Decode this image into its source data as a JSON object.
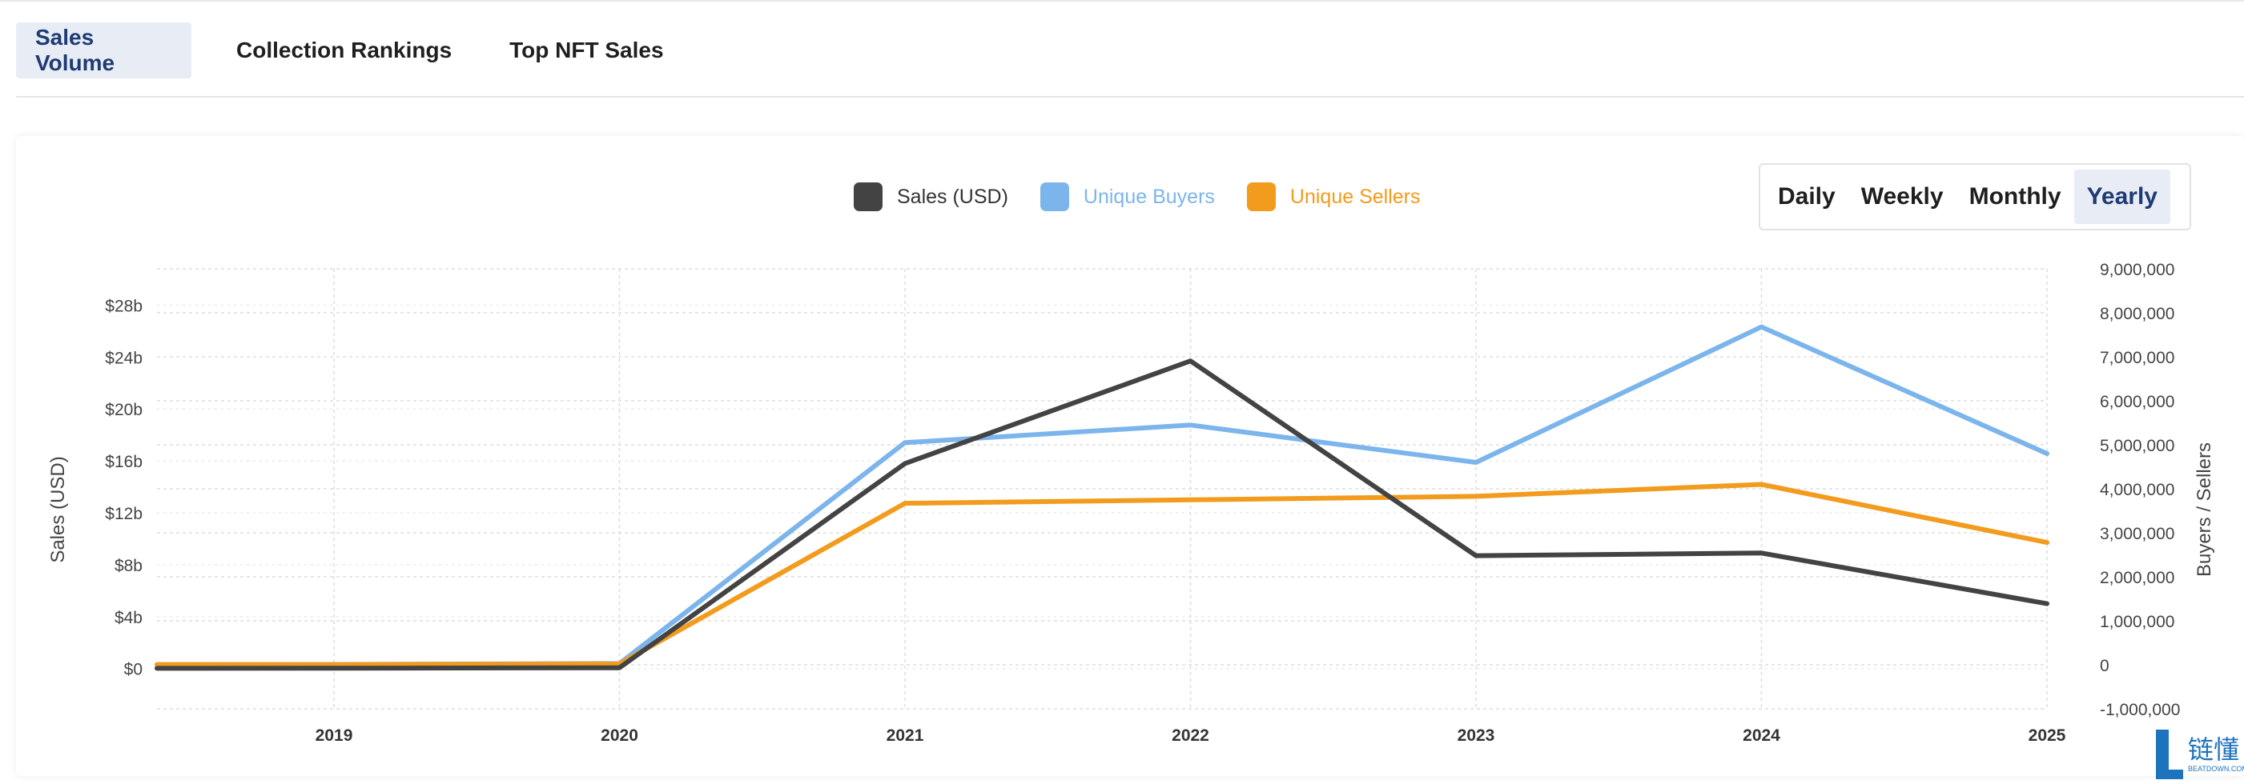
{
  "tabs": [
    {
      "label": "Sales Volume",
      "active": true
    },
    {
      "label": "Collection Rankings",
      "active": false
    },
    {
      "label": "Top NFT Sales",
      "active": false
    }
  ],
  "periods": [
    {
      "label": "Daily",
      "active": false
    },
    {
      "label": "Weekly",
      "active": false
    },
    {
      "label": "Monthly",
      "active": false
    },
    {
      "label": "Yearly",
      "active": true
    }
  ],
  "watermark": {
    "text": "链懂",
    "subtext": "BEATDOWN.COM"
  },
  "chart_data": {
    "type": "line",
    "x": [
      "2019",
      "2020",
      "2021",
      "2022",
      "2023",
      "2024",
      "2025"
    ],
    "x_start": 2018.38,
    "ylabel": "Sales (USD)",
    "y2label": "Buyers / Sellers",
    "y_ticks": [
      "$0",
      "$4b",
      "$8b",
      "$12b",
      "$16b",
      "$20b",
      "$24b",
      "$28b"
    ],
    "y_tick_values": [
      0,
      4,
      8,
      12,
      16,
      20,
      24,
      28
    ],
    "ylim": [
      -3.1,
      30.8
    ],
    "y2_ticks": [
      "-1,000,000",
      "0",
      "1,000,000",
      "2,000,000",
      "3,000,000",
      "4,000,000",
      "5,000,000",
      "6,000,000",
      "7,000,000",
      "8,000,000",
      "9,000,000"
    ],
    "y2_tick_values": [
      -1000000,
      0,
      1000000,
      2000000,
      3000000,
      4000000,
      5000000,
      6000000,
      7000000,
      8000000,
      9000000
    ],
    "y2lim": [
      -1000000,
      9000000
    ],
    "grid": true,
    "legend_position": "top-center",
    "series": [
      {
        "name": "Sales (USD)",
        "axis": "left",
        "color": "#434343",
        "points": [
          [
            2018.38,
            0.02
          ],
          [
            2019,
            0.03
          ],
          [
            2020,
            0.06
          ],
          [
            2021,
            15.8
          ],
          [
            2022,
            23.7
          ],
          [
            2023,
            8.7
          ],
          [
            2024,
            8.9
          ],
          [
            2025,
            5.0
          ]
        ]
      },
      {
        "name": "Unique Buyers",
        "axis": "right",
        "color": "#7cb5ec",
        "points": [
          [
            2018.38,
            6000
          ],
          [
            2019,
            8000
          ],
          [
            2020,
            30000
          ],
          [
            2021,
            5050000
          ],
          [
            2022,
            5450000
          ],
          [
            2023,
            4600000
          ],
          [
            2024,
            7680000
          ],
          [
            2025,
            4800000
          ]
        ]
      },
      {
        "name": "Unique Sellers",
        "axis": "right",
        "color": "#f29b1d",
        "points": [
          [
            2018.38,
            3000
          ],
          [
            2019,
            6000
          ],
          [
            2020,
            20000
          ],
          [
            2021,
            3670000
          ],
          [
            2022,
            3750000
          ],
          [
            2023,
            3830000
          ],
          [
            2024,
            4100000
          ],
          [
            2025,
            2780000
          ]
        ]
      }
    ]
  }
}
